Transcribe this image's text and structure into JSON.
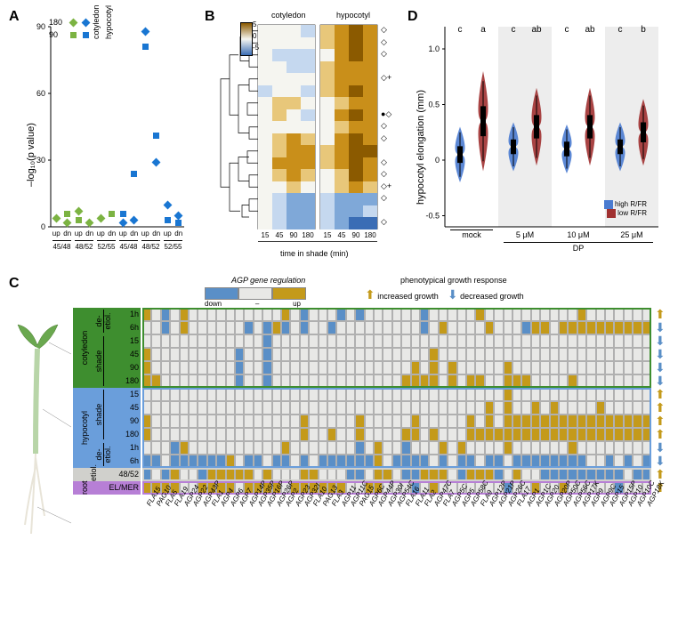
{
  "labels": {
    "A": "A",
    "B": "B",
    "C": "C",
    "D": "D",
    "ylabA": "–log₁₀(p value)",
    "legA180": "180",
    "legA90": "90",
    "legAcot": "cotyledon",
    "legAhyp": "hypocotyl",
    "xA_up": "up",
    "xA_dn": "dn",
    "xA_g1": "45/48",
    "xA_g2": "48/52",
    "xA_g3": "52/55",
    "B_cot": "cotyledon",
    "B_hyp": "hypocotyl",
    "B_xlab": "time in shade (min)",
    "B_ticks": [
      "15",
      "45",
      "90",
      "180",
      "15",
      "45",
      "90",
      "180"
    ],
    "B_scale": [
      "5",
      "0",
      "-5"
    ],
    "D_ylab": "hypocotyl elongation (mm)",
    "D_mock": "mock",
    "D_DP": "DP",
    "D_conc": [
      "5 μM",
      "10 μM",
      "25 μM"
    ],
    "D_letters": [
      "c",
      "a",
      "c",
      "ab",
      "c",
      "ab",
      "c",
      "b"
    ],
    "D_leg_high": "high R/FR",
    "D_leg_low": "low R/FR",
    "C_legTitle": "AGP gene regulation",
    "C_down": "down",
    "C_dash": "–",
    "C_up": "up",
    "C_pheno": "phenotypical growth response",
    "C_inc": "increased growth",
    "C_dec": "decreased growth",
    "C_cot": "cotyledon",
    "C_hyp": "hypocotyl",
    "C_root": "root",
    "C_de": "de-\netiol.",
    "C_shade": "shade",
    "C_etiol": "etiol.",
    "C_elmer": "EL/MER"
  },
  "colors": {
    "green": "#7cb342",
    "blue": "#1976d2",
    "gold": "#c49a1a",
    "hm_up5": "#8b5a00",
    "hm_up3": "#c98f1a",
    "hm_up1": "#e8c77a",
    "hm_0": "#f5f5f0",
    "hm_dn1": "#c5d8ef",
    "hm_dn3": "#7fa8d8",
    "hm_dn5": "#3a6db5",
    "grid_up": "#c49a1a",
    "grid_down": "#5a8fc7",
    "grid_none": "#e8e8e6",
    "sect_green": "#3e8e2f",
    "sect_blue": "#6a9edb",
    "sect_grey": "#d0d0cc",
    "sect_purple": "#b77fd6",
    "violin_high": "#4a7bd0",
    "violin_low": "#a03030",
    "arrow_up": "#c49a1a",
    "arrow_down": "#5a8fc7"
  },
  "panelA": {
    "ymax": 90,
    "yticks": [
      0,
      30,
      60,
      90
    ],
    "points": [
      {
        "x": 0,
        "y": 4,
        "shape": "diamond",
        "color": "green"
      },
      {
        "x": 1,
        "y": 6,
        "shape": "square",
        "color": "green"
      },
      {
        "x": 1,
        "y": 2,
        "shape": "diamond",
        "color": "green"
      },
      {
        "x": 2,
        "y": 7,
        "shape": "diamond",
        "color": "green"
      },
      {
        "x": 2,
        "y": 3,
        "shape": "square",
        "color": "green"
      },
      {
        "x": 3,
        "y": 2,
        "shape": "diamond",
        "color": "green"
      },
      {
        "x": 4,
        "y": 4,
        "shape": "diamond",
        "color": "green"
      },
      {
        "x": 5,
        "y": 6,
        "shape": "square",
        "color": "green"
      },
      {
        "x": 6,
        "y": 6,
        "shape": "square",
        "color": "blue"
      },
      {
        "x": 6,
        "y": 2,
        "shape": "diamond",
        "color": "blue"
      },
      {
        "x": 7,
        "y": 24,
        "shape": "square",
        "color": "blue"
      },
      {
        "x": 7,
        "y": 3,
        "shape": "diamond",
        "color": "blue"
      },
      {
        "x": 8,
        "y": 88,
        "shape": "diamond",
        "color": "blue"
      },
      {
        "x": 8,
        "y": 81,
        "shape": "square",
        "color": "blue"
      },
      {
        "x": 9,
        "y": 41,
        "shape": "square",
        "color": "blue"
      },
      {
        "x": 9,
        "y": 29,
        "shape": "diamond",
        "color": "blue"
      },
      {
        "x": 10,
        "y": 10,
        "shape": "diamond",
        "color": "blue"
      },
      {
        "x": 10,
        "y": 3,
        "shape": "square",
        "color": "blue"
      },
      {
        "x": 11,
        "y": 5,
        "shape": "diamond",
        "color": "blue"
      },
      {
        "x": 11,
        "y": 2,
        "shape": "square",
        "color": "blue"
      }
    ]
  },
  "panelB": {
    "rows": 17,
    "cols": 8,
    "markers": [
      "◇",
      "◇",
      "◇",
      "",
      "◇+",
      "",
      "",
      "●◇",
      "◇",
      "◇",
      "",
      "◇",
      "◇",
      "◇+",
      "◇",
      "",
      "◇"
    ],
    "data": [
      [
        0,
        0,
        0,
        -0.5,
        1,
        3,
        4,
        3
      ],
      [
        0,
        0,
        0,
        0,
        1,
        3,
        4,
        3
      ],
      [
        0,
        -0.5,
        -1,
        -1,
        0,
        2,
        4,
        3
      ],
      [
        0,
        0,
        -1,
        -1,
        1,
        2,
        3,
        2
      ],
      [
        0,
        0,
        0,
        0,
        1,
        2,
        3,
        2
      ],
      [
        -0.5,
        0,
        0,
        -1,
        1,
        2,
        4,
        3
      ],
      [
        0,
        1,
        1,
        0,
        0,
        1,
        3,
        2
      ],
      [
        0,
        1,
        0,
        -1,
        0,
        2,
        4,
        3
      ],
      [
        0,
        0,
        0,
        0,
        0,
        1,
        3,
        2
      ],
      [
        0,
        1,
        2,
        1,
        0,
        2,
        4,
        3
      ],
      [
        0,
        1,
        3,
        2,
        1,
        3,
        5,
        4
      ],
      [
        0,
        2,
        3,
        2,
        1,
        2,
        4,
        3
      ],
      [
        0,
        1,
        2,
        1,
        0,
        1,
        4,
        3
      ],
      [
        0,
        0,
        1,
        0,
        0,
        1,
        2,
        1
      ],
      [
        0,
        -1,
        -2,
        -2,
        -1,
        -2,
        -3,
        -3
      ],
      [
        0,
        -1,
        -2,
        -2,
        -1,
        -2,
        -3,
        -1
      ],
      [
        0,
        -1,
        -2,
        -3,
        -1,
        -3,
        -4,
        -4
      ]
    ]
  },
  "panelD": {
    "groups": 4,
    "yticks": [
      "-0.5",
      "0",
      "0.5",
      "1.0"
    ],
    "ymin": -0.6,
    "ymax": 1.2
  },
  "panelC": {
    "rows": [
      {
        "label": "1h",
        "section": "cot_de"
      },
      {
        "label": "6h",
        "section": "cot_de"
      },
      {
        "label": "15",
        "section": "cot_shade"
      },
      {
        "label": "45",
        "section": "cot_shade"
      },
      {
        "label": "90",
        "section": "cot_shade"
      },
      {
        "label": "180",
        "section": "cot_shade"
      },
      {
        "label": "15",
        "section": "hyp_shade"
      },
      {
        "label": "45",
        "section": "hyp_shade"
      },
      {
        "label": "90",
        "section": "hyp_shade"
      },
      {
        "label": "180",
        "section": "hyp_shade"
      },
      {
        "label": "1h",
        "section": "hyp_de"
      },
      {
        "label": "6h",
        "section": "hyp_de"
      },
      {
        "label": "48/52",
        "section": "etiol"
      },
      {
        "label": "EL/MER",
        "section": "root"
      }
    ],
    "arrows": [
      "up",
      "down",
      "down",
      "down",
      "down",
      "down",
      "up",
      "up",
      "up",
      "up",
      "down",
      "down",
      "up",
      "up"
    ],
    "cols": [
      "FLA15",
      "PAG10",
      "FLA5",
      "FLA19",
      "AGP24",
      "AGP22",
      "AGP43P",
      "FLA1",
      "AGP4",
      "AGP6",
      "AGP7",
      "AGP14P",
      "AGP35P",
      "AGP16P",
      "AGP26P",
      "AGP2",
      "AGP23",
      "AGP32I",
      "FLA10",
      "PAG13",
      "FLA3",
      "AGP11",
      "AGP11C",
      "PAG15",
      "AGP6C",
      "AGP44P",
      "AGP30I",
      "AGP54C",
      "FLA16",
      "FLA11",
      "FLA2",
      "AGP47C",
      "FLA7",
      "AGP5C",
      "AGP5",
      "AGP58C",
      "FLA9",
      "AGP12P",
      "AGP21P",
      "AGP26C",
      "FLA17",
      "AGP1",
      "AGP1C",
      "AGP20",
      "AGP20P",
      "AGP50C",
      "AGP56C",
      "AGP17K",
      "AGP9",
      "AGP9C",
      "AGP15",
      "AGP15P",
      "AGP10",
      "AGP10C",
      "AGP18K"
    ],
    "grid": [
      "u.d.u..........u.d...d.d......d.....u..........u.......",
      "..d.u......d.dud.d..d.........d.u....u...duu.uuuuuuuuuu",
      ".............d.........................................",
      "u.........d..d.................u.......................",
      "u.........d..d...............u.u.u.....u...............",
      "uu........d..d..............uuuu.u.uu..uuu....u........",
      ".......................................u...............",
      ".....................................u.u..u.u....u.....",
      "u................u.....u.....u.....u.u.uuuuuuuuuuuuuuuu",
      "u................u..u..u....uu.u...uuuuuuuuuuuuuuuuuuuu",
      "...du..........u.......d.u..d...u.u....u......u........",
      "dd.ddddddu.dd.dd.d.ddddddu.dddd.d.dd.dd.dddddddd..d.d.d",
      "d.du..duuuuu.u...uu...dd.uu.dduuu.duuud.u..ddddddddd.dd",
      "uuuu..uuuu.uuuu.uuuuuu..uu...d.u.......d..u..u.....d..."
    ]
  }
}
